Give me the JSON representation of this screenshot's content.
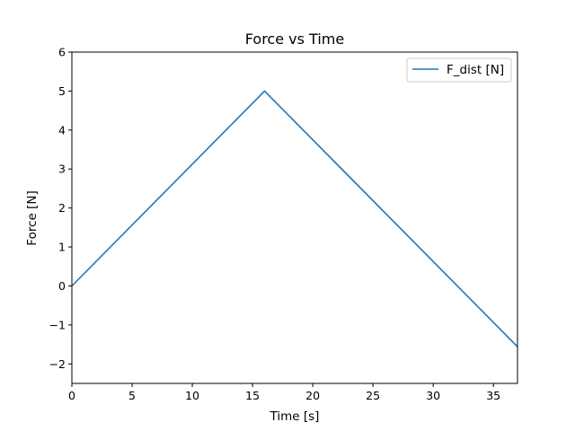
{
  "chart_data": {
    "type": "line",
    "title": "Force vs Time",
    "xlabel": "Time [s]",
    "ylabel": "Force [N]",
    "xlim": [
      0,
      37
    ],
    "ylim": [
      -2.5,
      6
    ],
    "xticks": [
      0,
      5,
      10,
      15,
      20,
      25,
      30,
      35
    ],
    "yticks": [
      -2,
      -1,
      0,
      1,
      2,
      3,
      4,
      5,
      6
    ],
    "xtick_labels": [
      "0",
      "5",
      "10",
      "15",
      "20",
      "25",
      "30",
      "35"
    ],
    "ytick_labels": [
      "−2",
      "−1",
      "0",
      "1",
      "2",
      "3",
      "4",
      "5",
      "6"
    ],
    "grid": false,
    "legend_position": "top-right",
    "series": [
      {
        "name": "F_dist [N]",
        "color": "#1f77b4",
        "x": [
          0,
          16,
          37
        ],
        "y": [
          0,
          5,
          -1.56
        ]
      }
    ]
  }
}
